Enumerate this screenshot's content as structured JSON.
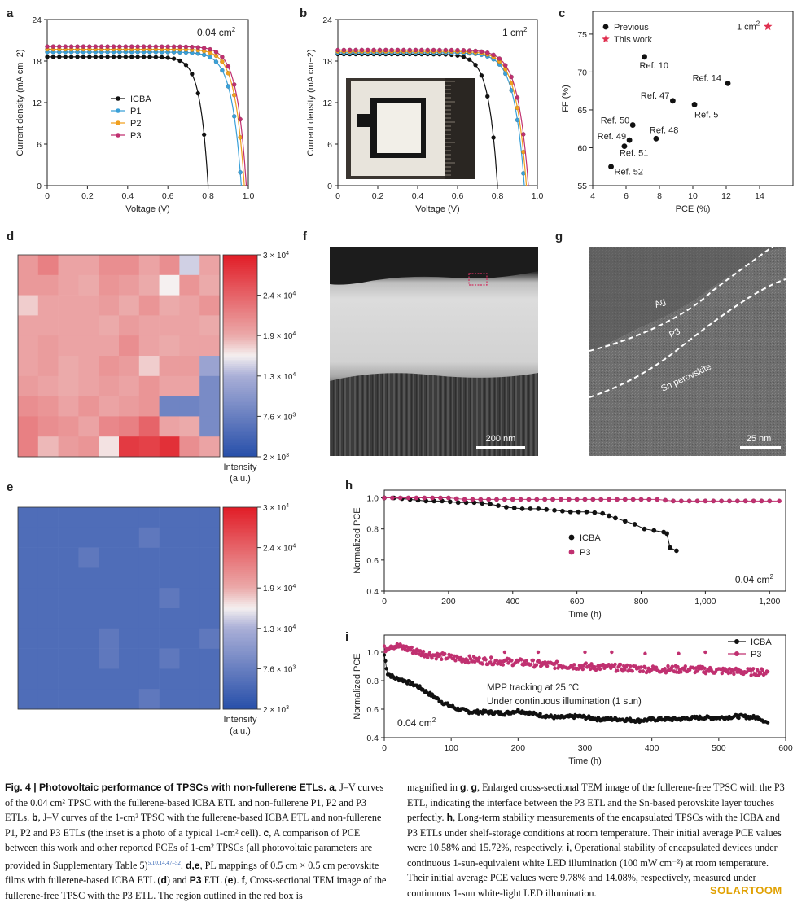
{
  "panels": {
    "a": {
      "label": "a",
      "area": "0.04 cm",
      "area_sup": "2"
    },
    "b": {
      "label": "b",
      "area": "1 cm",
      "area_sup": "2"
    },
    "c": {
      "label": "c",
      "area": "1 cm",
      "area_sup": "2"
    },
    "d": {
      "label": "d"
    },
    "e": {
      "label": "e"
    },
    "f": {
      "label": "f",
      "scalebar": "200 nm"
    },
    "g": {
      "label": "g",
      "scalebar": "25 nm",
      "layer_ag": "Ag",
      "layer_p3": "P3",
      "layer_sn": "Sn perovskite"
    },
    "h": {
      "label": "h",
      "area": "0.04 cm",
      "area_sup": "2"
    },
    "i": {
      "label": "i",
      "area": "0.04 cm",
      "area_sup": "2",
      "annot1": "MPP tracking at 25 °C",
      "annot2": "Under continuous illumination (1 sun)"
    }
  },
  "colorbar": {
    "ticks": [
      "3 × 10",
      "2.4 × 10",
      "1.9 × 10",
      "1.3 × 10",
      "7.6 × 10",
      "2 × 10"
    ],
    "tick_sups": [
      "4",
      "4",
      "4",
      "4",
      "3",
      "3"
    ],
    "label1": "Intensity",
    "label2": "(a.u.)"
  },
  "colors": {
    "ICBA": "#111111",
    "P1": "#3aa0d8",
    "P2": "#f0a020",
    "P3": "#c03070",
    "star": "#e03050"
  },
  "chart_data": [
    {
      "id": "a",
      "type": "line",
      "title": "0.04 cm2",
      "xlabel": "Voltage (V)",
      "ylabel": "Current density (mA cm−2)",
      "xlim": [
        0,
        1.0
      ],
      "ylim": [
        0,
        24
      ],
      "xticks": [
        "0",
        "0.2",
        "0.4",
        "0.6",
        "0.8",
        "1.0"
      ],
      "yticks": [
        "0",
        "6",
        "12",
        "18",
        "24"
      ],
      "series": [
        {
          "name": "ICBA",
          "jsc": 18.6,
          "voc": 0.8,
          "k": 0.09
        },
        {
          "name": "P1",
          "jsc": 19.3,
          "voc": 0.965,
          "k": 0.09
        },
        {
          "name": "P2",
          "jsc": 19.7,
          "voc": 0.98,
          "k": 0.085
        },
        {
          "name": "P3",
          "jsc": 20.1,
          "voc": 0.99,
          "k": 0.085
        }
      ]
    },
    {
      "id": "b",
      "type": "line",
      "title": "1 cm2",
      "xlabel": "Voltage (V)",
      "ylabel": "Current density (mA cm−2)",
      "xlim": [
        0,
        1.0
      ],
      "ylim": [
        0,
        24
      ],
      "xticks": [
        "0",
        "0.2",
        "0.4",
        "0.6",
        "0.8",
        "1.0"
      ],
      "yticks": [
        "0",
        "6",
        "12",
        "18",
        "24"
      ],
      "series": [
        {
          "name": "ICBA",
          "jsc": 19.0,
          "voc": 0.8,
          "k": 0.1
        },
        {
          "name": "P1",
          "jsc": 19.2,
          "voc": 0.935,
          "k": 0.1
        },
        {
          "name": "P2",
          "jsc": 19.4,
          "voc": 0.945,
          "k": 0.1
        },
        {
          "name": "P3",
          "jsc": 19.6,
          "voc": 0.955,
          "k": 0.1
        }
      ]
    },
    {
      "id": "c",
      "type": "scatter",
      "xlabel": "PCE (%)",
      "ylabel": "FF (%)",
      "xlim": [
        4,
        16
      ],
      "ylim": [
        55,
        78
      ],
      "xticks": [
        "4",
        "6",
        "8",
        "10",
        "12",
        "14"
      ],
      "yticks": [
        "55",
        "60",
        "65",
        "70",
        "75"
      ],
      "legend": [
        "Previous",
        "This work"
      ],
      "points": [
        {
          "label": "Ref. 10",
          "x": 7.1,
          "y": 72.0
        },
        {
          "label": "Ref. 14",
          "x": 12.1,
          "y": 68.5
        },
        {
          "label": "Ref. 47",
          "x": 8.8,
          "y": 66.2
        },
        {
          "label": "Ref. 5",
          "x": 10.1,
          "y": 65.7
        },
        {
          "label": "Ref. 50",
          "x": 6.4,
          "y": 63.0
        },
        {
          "label": "Ref. 49",
          "x": 6.2,
          "y": 61.0
        },
        {
          "label": "Ref. 48",
          "x": 7.8,
          "y": 61.2
        },
        {
          "label": "Ref. 51",
          "x": 5.9,
          "y": 60.2
        },
        {
          "label": "Ref. 52",
          "x": 5.1,
          "y": 57.5
        }
      ],
      "this_work": {
        "x": 14.5,
        "y": 76.0
      }
    },
    {
      "id": "h",
      "type": "line",
      "xlabel": "Time (h)",
      "ylabel": "Normalized PCE",
      "xlim": [
        0,
        1250
      ],
      "ylim": [
        0.4,
        1.05
      ],
      "xticks": [
        "0",
        "200",
        "400",
        "600",
        "800",
        "1,000",
        "1,200"
      ],
      "yticks": [
        "0.4",
        "0.6",
        "0.8",
        "1.0"
      ],
      "series": [
        {
          "name": "ICBA",
          "x": [
            0,
            30,
            80,
            130,
            180,
            230,
            280,
            330,
            380,
            430,
            480,
            530,
            580,
            630,
            680,
            720,
            750,
            780,
            810,
            840,
            870,
            880,
            890,
            910
          ],
          "y": [
            1.0,
            1.0,
            0.99,
            0.98,
            0.98,
            0.97,
            0.97,
            0.96,
            0.94,
            0.93,
            0.93,
            0.92,
            0.91,
            0.91,
            0.9,
            0.87,
            0.85,
            0.83,
            0.8,
            0.79,
            0.78,
            0.77,
            0.68,
            0.66
          ]
        },
        {
          "name": "P3",
          "x": [
            0,
            50,
            100,
            150,
            200,
            250,
            300,
            350,
            400,
            450,
            500,
            550,
            600,
            650,
            700,
            750,
            800,
            850,
            900,
            950,
            1000,
            1050,
            1100,
            1150,
            1200,
            1230
          ],
          "y": [
            1.0,
            1.0,
            1.0,
            1.0,
            1.0,
            0.99,
            0.99,
            0.99,
            0.99,
            0.99,
            0.99,
            0.99,
            0.99,
            0.99,
            0.99,
            0.99,
            0.99,
            0.99,
            0.98,
            0.98,
            0.98,
            0.98,
            0.98,
            0.98,
            0.98,
            0.98
          ]
        }
      ]
    },
    {
      "id": "i",
      "type": "line",
      "xlabel": "Time (h)",
      "ylabel": "Normalized PCE",
      "xlim": [
        0,
        600
      ],
      "ylim": [
        0.4,
        1.12
      ],
      "xticks": [
        "0",
        "100",
        "200",
        "300",
        "400",
        "500",
        "600"
      ],
      "yticks": [
        "0.4",
        "0.6",
        "0.8",
        "1.0"
      ],
      "series": [
        {
          "name": "ICBA",
          "x": [
            0,
            5,
            15,
            30,
            50,
            70,
            90,
            110,
            130,
            150,
            180,
            200,
            230,
            260,
            290,
            320,
            350,
            380,
            410,
            440,
            470,
            500,
            530,
            560,
            575
          ],
          "y": [
            0.98,
            0.85,
            0.82,
            0.8,
            0.76,
            0.7,
            0.64,
            0.6,
            0.58,
            0.58,
            0.57,
            0.59,
            0.56,
            0.54,
            0.55,
            0.53,
            0.53,
            0.52,
            0.53,
            0.53,
            0.54,
            0.54,
            0.55,
            0.54,
            0.5
          ]
        },
        {
          "name": "P3",
          "x": [
            0,
            10,
            30,
            60,
            100,
            150,
            200,
            250,
            300,
            350,
            400,
            450,
            500,
            550,
            575
          ],
          "y": [
            1.02,
            1.05,
            1.03,
            0.99,
            0.96,
            0.94,
            0.93,
            0.91,
            0.9,
            0.89,
            0.88,
            0.88,
            0.87,
            0.86,
            0.86
          ]
        }
      ]
    }
  ],
  "pl_map_d": [
    [
      0.65,
      0.72,
      0.62,
      0.62,
      0.68,
      0.68,
      0.62,
      0.68,
      0.45,
      0.62
    ],
    [
      0.65,
      0.65,
      0.62,
      0.6,
      0.66,
      0.64,
      0.6,
      0.5,
      0.66,
      0.6
    ],
    [
      0.55,
      0.62,
      0.62,
      0.62,
      0.64,
      0.6,
      0.66,
      0.6,
      0.62,
      0.66
    ],
    [
      0.62,
      0.62,
      0.62,
      0.62,
      0.6,
      0.64,
      0.62,
      0.62,
      0.62,
      0.6
    ],
    [
      0.62,
      0.64,
      0.62,
      0.62,
      0.62,
      0.68,
      0.62,
      0.6,
      0.62,
      0.62
    ],
    [
      0.62,
      0.64,
      0.6,
      0.62,
      0.66,
      0.64,
      0.55,
      0.64,
      0.64,
      0.35
    ],
    [
      0.64,
      0.62,
      0.6,
      0.62,
      0.64,
      0.62,
      0.66,
      0.62,
      0.62,
      0.25
    ],
    [
      0.68,
      0.66,
      0.62,
      0.66,
      0.62,
      0.64,
      0.66,
      0.22,
      0.22,
      0.25
    ],
    [
      0.72,
      0.68,
      0.66,
      0.62,
      0.7,
      0.72,
      0.8,
      0.62,
      0.6,
      0.25
    ],
    [
      0.72,
      0.58,
      0.64,
      0.66,
      0.52,
      0.92,
      0.9,
      0.95,
      0.68,
      0.62
    ]
  ],
  "pl_map_e_spots": [
    [
      6,
      1
    ],
    [
      3,
      2
    ],
    [
      7,
      4
    ],
    [
      4,
      6
    ],
    [
      9,
      6
    ],
    [
      4,
      7
    ],
    [
      7,
      7
    ],
    [
      6,
      9
    ]
  ],
  "caption": {
    "col1": [
      {
        "t": "b",
        "v": "Fig. 4 | Photovoltaic performance of TPSCs with non-fullerene ETLs. a"
      },
      {
        "t": "n",
        "v": ", J–V curves of the 0.04 cm² TPSC with the fullerene-based ICBA ETL and non-fullerene P1, P2 and P3 ETLs. "
      },
      {
        "t": "b",
        "v": "b"
      },
      {
        "t": "n",
        "v": ", J–V curves of the 1-cm² TPSC with the fullerene-based ICBA ETL and non-fullerene P1, P2 and P3 ETLs (the inset is a photo of a typical 1-cm² cell). "
      },
      {
        "t": "b",
        "v": "c"
      },
      {
        "t": "n",
        "v": ", A comparison of PCE between this work and other reported PCEs of 1-cm² TPSCs (all photovoltaic parameters are provided in Supplementary Table 5)"
      },
      {
        "t": "s",
        "v": "5,10,14,47–52"
      },
      {
        "t": "n",
        "v": ". "
      },
      {
        "t": "b",
        "v": "d,e"
      },
      {
        "t": "n",
        "v": ", PL mappings of 0.5 cm × 0.5 cm perovskite films with fullerene-based ICBA ETL ("
      },
      {
        "t": "b",
        "v": "d"
      },
      {
        "t": "n",
        "v": ") and "
      },
      {
        "t": "b",
        "v": "P3"
      },
      {
        "t": "n",
        "v": " ETL ("
      },
      {
        "t": "b",
        "v": "e"
      },
      {
        "t": "n",
        "v": "). "
      },
      {
        "t": "b",
        "v": "f"
      },
      {
        "t": "n",
        "v": ", Cross-sectional TEM image of the fullerene-free TPSC with the P3 ETL. The region outlined in the red box is"
      }
    ],
    "col2": [
      {
        "t": "n",
        "v": "magnified in "
      },
      {
        "t": "b",
        "v": "g"
      },
      {
        "t": "n",
        "v": ". "
      },
      {
        "t": "b",
        "v": "g"
      },
      {
        "t": "n",
        "v": ", Enlarged cross-sectional TEM image of the fullerene-free TPSC with the P3 ETL, indicating the interface between the P3 ETL and the Sn-based perovskite layer touches perfectly. "
      },
      {
        "t": "b",
        "v": "h"
      },
      {
        "t": "n",
        "v": ", Long-term stability measurements of the encapsulated TPSCs with the ICBA and P3 ETLs under shelf-storage conditions at room temperature. Their initial average PCE values were 10.58% and 15.72%, respectively. "
      },
      {
        "t": "b",
        "v": "i"
      },
      {
        "t": "n",
        "v": ", Operational stability of encapsulated devices under continuous 1-sun-equivalent white LED illumination (100 mW cm⁻²) at room temperature. Their initial average PCE values were 9.78% and 14.08%, respectively, measured under continuous 1-sun white-light LED illumination."
      }
    ]
  },
  "watermark": "SOLARTOOM"
}
